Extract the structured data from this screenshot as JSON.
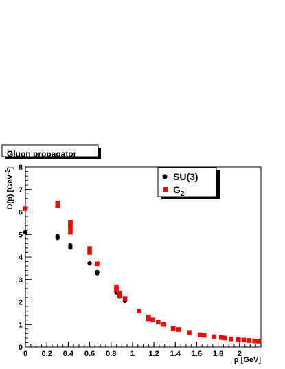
{
  "chart_data": {
    "type": "scatter",
    "title": "Gluon propagator",
    "xlabel": "p [GeV]",
    "ylabel_main": "D(p) [GeV",
    "ylabel_sup": "-2",
    "ylabel_close": "]",
    "xlim": [
      0,
      2.2
    ],
    "ylim": [
      0,
      8
    ],
    "x_ticks": [
      0,
      0.2,
      0.4,
      0.6,
      0.8,
      1,
      1.2,
      1.4,
      1.6,
      1.8,
      2
    ],
    "x_tick_labels": [
      "0",
      "0.2",
      "0.4",
      "0.6",
      "0.8",
      "1",
      "1.2",
      "1.4",
      "1.6",
      "1.8",
      "2"
    ],
    "y_ticks": [
      0,
      1,
      2,
      3,
      4,
      5,
      6,
      7,
      8
    ],
    "y_tick_labels": [
      "0",
      "1",
      "2",
      "3",
      "4",
      "5",
      "6",
      "7",
      "8"
    ],
    "legend_position": "top-right",
    "series": [
      {
        "name": "SU(3)",
        "legend_label": "SU(3)",
        "marker": "circle",
        "color": "#000000",
        "points": [
          [
            0.0,
            5.1
          ],
          [
            0.3,
            4.85
          ],
          [
            0.3,
            4.92
          ],
          [
            0.42,
            4.42
          ],
          [
            0.42,
            4.52
          ],
          [
            0.6,
            3.72
          ],
          [
            0.67,
            3.28
          ],
          [
            0.67,
            3.33
          ],
          [
            0.85,
            2.42
          ],
          [
            0.88,
            2.25
          ],
          [
            0.93,
            2.05
          ]
        ]
      },
      {
        "name": "G2",
        "legend_label_main": "G",
        "legend_label_sub": "2",
        "marker": "square",
        "color": "#ff0000",
        "points": [
          [
            0.0,
            6.15
          ],
          [
            0.3,
            6.3
          ],
          [
            0.3,
            6.4
          ],
          [
            0.42,
            5.1
          ],
          [
            0.42,
            5.3
          ],
          [
            0.42,
            5.45
          ],
          [
            0.42,
            5.55
          ],
          [
            0.6,
            4.2
          ],
          [
            0.6,
            4.38
          ],
          [
            0.67,
            3.7
          ],
          [
            0.85,
            2.55
          ],
          [
            0.85,
            2.65
          ],
          [
            0.88,
            2.3
          ],
          [
            0.88,
            2.4
          ],
          [
            0.93,
            2.15
          ],
          [
            1.06,
            1.6
          ],
          [
            1.15,
            1.25
          ],
          [
            1.15,
            1.32
          ],
          [
            1.19,
            1.2
          ],
          [
            1.24,
            1.1
          ],
          [
            1.29,
            1.0
          ],
          [
            1.38,
            0.82
          ],
          [
            1.43,
            0.78
          ],
          [
            1.53,
            0.65
          ],
          [
            1.63,
            0.55
          ],
          [
            1.67,
            0.52
          ],
          [
            1.76,
            0.46
          ],
          [
            1.83,
            0.42
          ],
          [
            1.86,
            0.4
          ],
          [
            1.92,
            0.36
          ],
          [
            1.99,
            0.34
          ],
          [
            2.04,
            0.31
          ],
          [
            2.09,
            0.29
          ],
          [
            2.14,
            0.27
          ],
          [
            2.18,
            0.26
          ]
        ]
      }
    ]
  }
}
